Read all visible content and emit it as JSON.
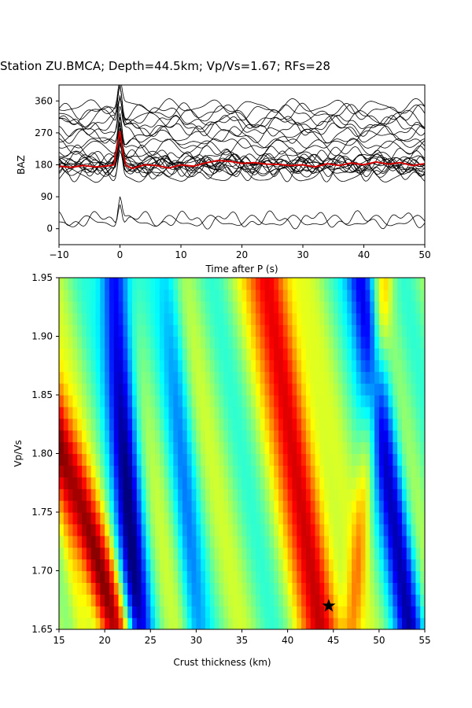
{
  "title": "Station ZU.BMCA; Depth=44.5km; Vp/Vs=1.67; RFs=28",
  "chart_data": [
    {
      "type": "line",
      "xlabel": "Time after P (s)",
      "ylabel": "BAZ",
      "xlim": [
        -10,
        50
      ],
      "ylim": [
        -45,
        405
      ],
      "xticks": [
        "−10",
        "0",
        "10",
        "20",
        "30",
        "40",
        "50"
      ],
      "yticks": [
        "0",
        "90",
        "180",
        "270",
        "360"
      ],
      "trace_count": 28,
      "trace_color": "#000000",
      "stack_color": "#d40000",
      "stack_baseline": 180,
      "description": "Receiver function traces plotted at their back-azimuth with a red stacked trace at 180; strong direct-P peak at 0 s.",
      "stack": {
        "x": [
          -10,
          -8,
          -6,
          -4,
          -2,
          -1,
          0,
          0.5,
          1,
          2,
          4,
          6,
          8,
          10,
          12,
          14,
          16,
          18,
          20,
          22,
          24,
          26,
          28,
          30,
          32,
          34,
          36,
          38,
          40,
          42,
          44,
          46,
          48,
          50
        ],
        "y": [
          176,
          173,
          178,
          174,
          177,
          180,
          275,
          210,
          178,
          170,
          180,
          178,
          171,
          180,
          176,
          185,
          192,
          190,
          184,
          186,
          182,
          181,
          178,
          180,
          174,
          183,
          178,
          185,
          180,
          188,
          182,
          186,
          178,
          183
        ]
      }
    },
    {
      "type": "heatmap",
      "xlabel": "Crust thickness (km)",
      "ylabel": "Vp/Vs",
      "xlim": [
        15,
        55
      ],
      "ylim": [
        1.65,
        1.95
      ],
      "xticks": [
        "15",
        "20",
        "25",
        "30",
        "35",
        "40",
        "45",
        "50",
        "55"
      ],
      "yticks": [
        "1.65",
        "1.70",
        "1.75",
        "1.80",
        "1.85",
        "1.90",
        "1.95"
      ],
      "colormap": "jet",
      "best": {
        "H": 44.5,
        "k": 1.67,
        "marker": "star"
      },
      "ridges": [
        {
          "H_at_k165": 21.5,
          "slope_km_per_unit": -40,
          "sign": 1,
          "width_km": 2.0,
          "amp": 0.85
        },
        {
          "H_at_k165": 17.5,
          "slope_km_per_unit": -20,
          "sign": 1,
          "width_km": 1.2,
          "amp": 0.35
        },
        {
          "H_at_k165": 23.5,
          "slope_km_per_unit": -8,
          "sign": -1,
          "width_km": 1.6,
          "amp": 0.9
        },
        {
          "H_at_k165": 30.0,
          "slope_km_per_unit": -10,
          "sign": -1,
          "width_km": 1.4,
          "amp": 0.35
        },
        {
          "H_at_k165": 44.0,
          "slope_km_per_unit": -20,
          "sign": 1,
          "width_km": 2.2,
          "amp": 0.9
        },
        {
          "H_at_k165": 48.0,
          "slope_km_per_unit": 0,
          "sign": 1,
          "width_km": 0.0,
          "amp": 0.0
        },
        {
          "H_at_k165": 53.5,
          "slope_km_per_unit": -18,
          "sign": -1,
          "width_km": 1.6,
          "amp": 0.85
        },
        {
          "H_at_k165": 47.0,
          "slope_km_per_unit": 12,
          "sign": 1,
          "width_km": 1.0,
          "amp": 0.35
        }
      ]
    }
  ]
}
